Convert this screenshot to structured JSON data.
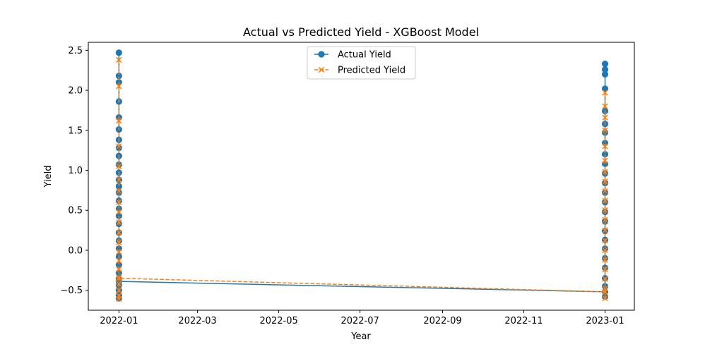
{
  "chart_data": {
    "type": "line",
    "title": "Actual vs Predicted Yield - XGBoost Model",
    "xlabel": "Year",
    "ylabel": "Yield",
    "xlim": [
      "2021-12-09",
      "2023-01-23"
    ],
    "ylim": [
      -0.75,
      2.6
    ],
    "x_ticks": [
      "2022-01-01",
      "2022-03-01",
      "2022-05-01",
      "2022-07-01",
      "2022-09-01",
      "2022-11-01",
      "2023-01-01"
    ],
    "x_tick_labels": [
      "2022-01",
      "2022-03",
      "2022-05",
      "2022-07",
      "2022-09",
      "2022-11",
      "2023-01"
    ],
    "y_ticks": [
      -0.5,
      0.0,
      0.5,
      1.0,
      1.5,
      2.0,
      2.5
    ],
    "y_tick_labels": [
      "−0.5",
      "0.0",
      "0.5",
      "1.0",
      "1.5",
      "2.0",
      "2.5"
    ],
    "grid": false,
    "legend_position": "top-center",
    "series": [
      {
        "name": "Actual Yield",
        "color": "#1f77b4",
        "line_style": "solid",
        "marker": "circle",
        "points": [
          {
            "x": "2022-01-01",
            "y": 2.47
          },
          {
            "x": "2022-01-01",
            "y": 2.18
          },
          {
            "x": "2022-01-01",
            "y": 2.1
          },
          {
            "x": "2022-01-01",
            "y": 1.86
          },
          {
            "x": "2022-01-01",
            "y": 1.66
          },
          {
            "x": "2022-01-01",
            "y": 1.51
          },
          {
            "x": "2022-01-01",
            "y": 1.38
          },
          {
            "x": "2022-01-01",
            "y": 1.28
          },
          {
            "x": "2022-01-01",
            "y": 1.18
          },
          {
            "x": "2022-01-01",
            "y": 1.07
          },
          {
            "x": "2022-01-01",
            "y": 0.97
          },
          {
            "x": "2022-01-01",
            "y": 0.88
          },
          {
            "x": "2022-01-01",
            "y": 0.8
          },
          {
            "x": "2022-01-01",
            "y": 0.72
          },
          {
            "x": "2022-01-01",
            "y": 0.62
          },
          {
            "x": "2022-01-01",
            "y": 0.52
          },
          {
            "x": "2022-01-01",
            "y": 0.43
          },
          {
            "x": "2022-01-01",
            "y": 0.33
          },
          {
            "x": "2022-01-01",
            "y": 0.22
          },
          {
            "x": "2022-01-01",
            "y": 0.12
          },
          {
            "x": "2022-01-01",
            "y": 0.02
          },
          {
            "x": "2022-01-01",
            "y": -0.08
          },
          {
            "x": "2022-01-01",
            "y": -0.18
          },
          {
            "x": "2022-01-01",
            "y": -0.28
          },
          {
            "x": "2022-01-01",
            "y": -0.36
          },
          {
            "x": "2022-01-01",
            "y": -0.44
          },
          {
            "x": "2022-01-01",
            "y": -0.5
          },
          {
            "x": "2022-01-01",
            "y": -0.56
          },
          {
            "x": "2022-01-01",
            "y": -0.6
          },
          {
            "x": "2022-01-01",
            "y": -0.39
          },
          {
            "x": "2023-01-01",
            "y": -0.52
          },
          {
            "x": "2023-01-01",
            "y": -0.58
          },
          {
            "x": "2023-01-01",
            "y": -0.45
          },
          {
            "x": "2023-01-01",
            "y": -0.35
          },
          {
            "x": "2023-01-01",
            "y": -0.22
          },
          {
            "x": "2023-01-01",
            "y": -0.1
          },
          {
            "x": "2023-01-01",
            "y": 0.02
          },
          {
            "x": "2023-01-01",
            "y": 0.13
          },
          {
            "x": "2023-01-01",
            "y": 0.24
          },
          {
            "x": "2023-01-01",
            "y": 0.36
          },
          {
            "x": "2023-01-01",
            "y": 0.48
          },
          {
            "x": "2023-01-01",
            "y": 0.6
          },
          {
            "x": "2023-01-01",
            "y": 0.72
          },
          {
            "x": "2023-01-01",
            "y": 0.84
          },
          {
            "x": "2023-01-01",
            "y": 0.96
          },
          {
            "x": "2023-01-01",
            "y": 1.08
          },
          {
            "x": "2023-01-01",
            "y": 1.2
          },
          {
            "x": "2023-01-01",
            "y": 1.34
          },
          {
            "x": "2023-01-01",
            "y": 1.47
          },
          {
            "x": "2023-01-01",
            "y": 1.58
          },
          {
            "x": "2023-01-01",
            "y": 1.74
          },
          {
            "x": "2023-01-01",
            "y": 2.02
          },
          {
            "x": "2023-01-01",
            "y": 2.2
          },
          {
            "x": "2023-01-01",
            "y": 2.26
          },
          {
            "x": "2023-01-01",
            "y": 2.33
          }
        ]
      },
      {
        "name": "Predicted Yield",
        "color": "#ff7f0e",
        "line_style": "dashed",
        "marker": "x",
        "points": [
          {
            "x": "2022-01-01",
            "y": 2.38
          },
          {
            "x": "2022-01-01",
            "y": 2.05
          },
          {
            "x": "2022-01-01",
            "y": 1.62
          },
          {
            "x": "2022-01-01",
            "y": 1.3
          },
          {
            "x": "2022-01-01",
            "y": 1.05
          },
          {
            "x": "2022-01-01",
            "y": 0.88
          },
          {
            "x": "2022-01-01",
            "y": 0.74
          },
          {
            "x": "2022-01-01",
            "y": 0.6
          },
          {
            "x": "2022-01-01",
            "y": 0.48
          },
          {
            "x": "2022-01-01",
            "y": 0.35
          },
          {
            "x": "2022-01-01",
            "y": 0.22
          },
          {
            "x": "2022-01-01",
            "y": 0.1
          },
          {
            "x": "2022-01-01",
            "y": -0.02
          },
          {
            "x": "2022-01-01",
            "y": -0.13
          },
          {
            "x": "2022-01-01",
            "y": -0.24
          },
          {
            "x": "2022-01-01",
            "y": -0.34
          },
          {
            "x": "2022-01-01",
            "y": -0.42
          },
          {
            "x": "2022-01-01",
            "y": -0.5
          },
          {
            "x": "2022-01-01",
            "y": -0.57
          },
          {
            "x": "2022-01-01",
            "y": -0.61
          },
          {
            "x": "2022-01-01",
            "y": -0.35
          },
          {
            "x": "2023-01-01",
            "y": -0.52
          },
          {
            "x": "2023-01-01",
            "y": -0.6
          },
          {
            "x": "2023-01-01",
            "y": -0.48
          },
          {
            "x": "2023-01-01",
            "y": -0.36
          },
          {
            "x": "2023-01-01",
            "y": -0.24
          },
          {
            "x": "2023-01-01",
            "y": -0.12
          },
          {
            "x": "2023-01-01",
            "y": 0.0
          },
          {
            "x": "2023-01-01",
            "y": 0.12
          },
          {
            "x": "2023-01-01",
            "y": 0.25
          },
          {
            "x": "2023-01-01",
            "y": 0.38
          },
          {
            "x": "2023-01-01",
            "y": 0.5
          },
          {
            "x": "2023-01-01",
            "y": 0.62
          },
          {
            "x": "2023-01-01",
            "y": 0.74
          },
          {
            "x": "2023-01-01",
            "y": 0.86
          },
          {
            "x": "2023-01-01",
            "y": 0.98
          },
          {
            "x": "2023-01-01",
            "y": 1.12
          },
          {
            "x": "2023-01-01",
            "y": 1.3
          },
          {
            "x": "2023-01-01",
            "y": 1.5
          },
          {
            "x": "2023-01-01",
            "y": 1.66
          },
          {
            "x": "2023-01-01",
            "y": 1.8
          },
          {
            "x": "2023-01-01",
            "y": 1.97
          }
        ]
      }
    ]
  }
}
